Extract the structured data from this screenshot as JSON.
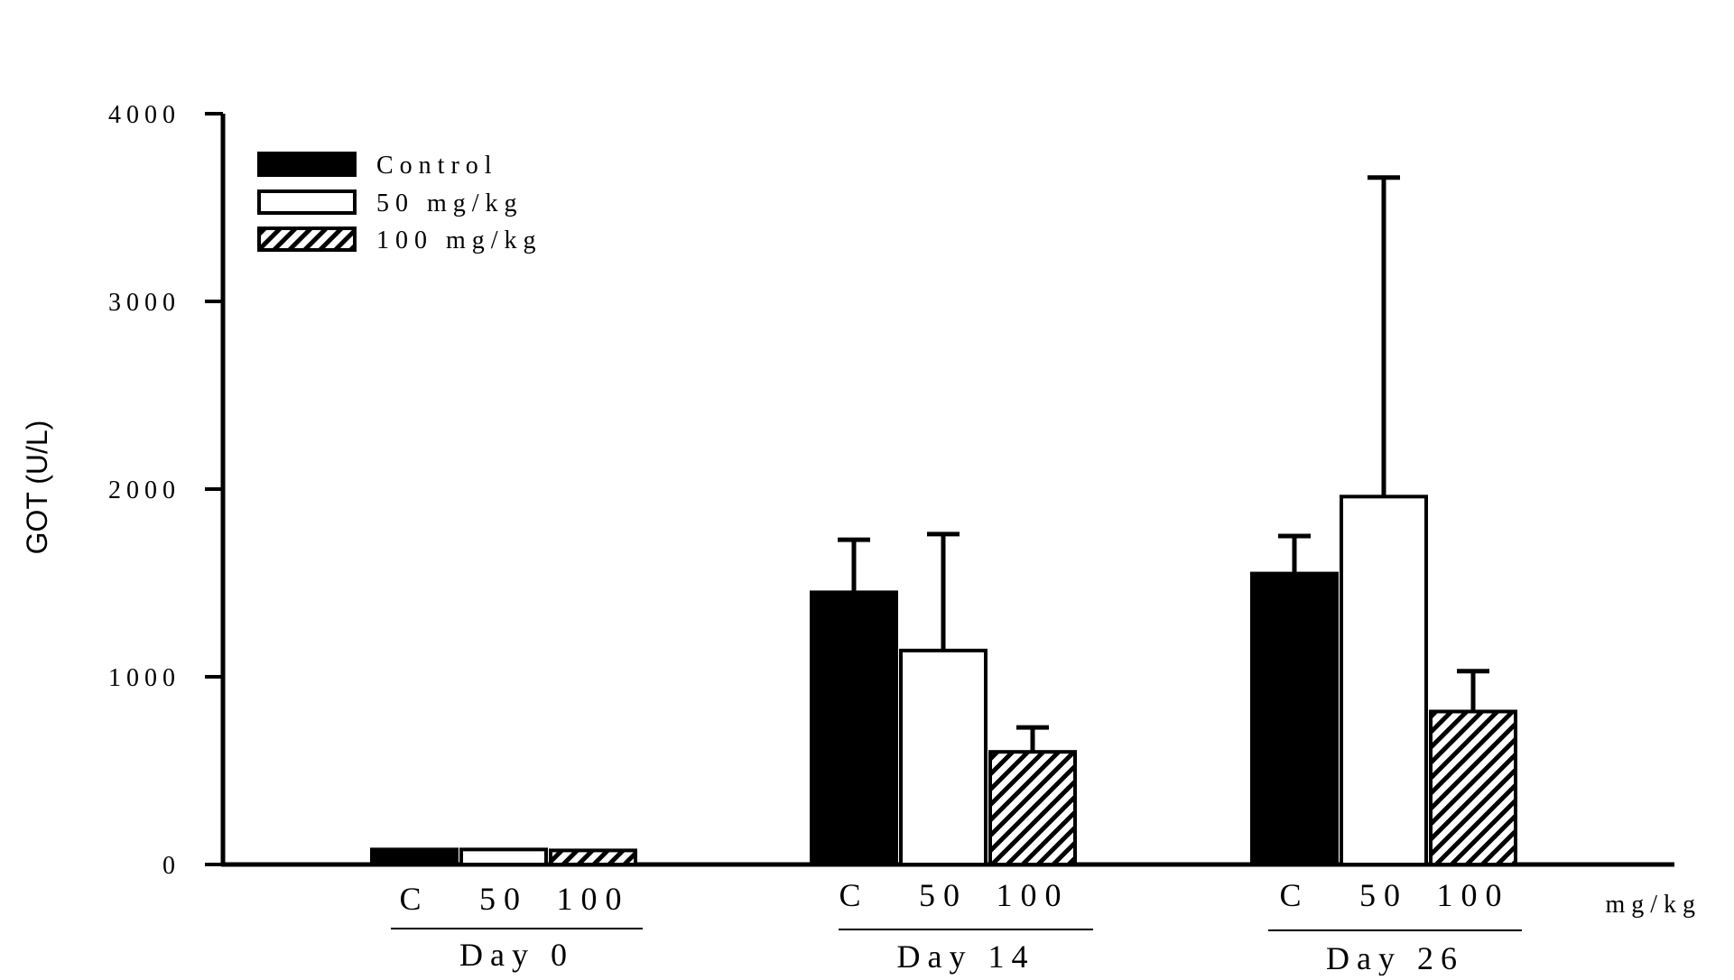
{
  "chart_data": {
    "type": "bar",
    "title": "",
    "ylabel": "GOT (U/L)",
    "ylim": [
      0,
      4000
    ],
    "yticks": [
      "0",
      "1000",
      "2000",
      "3000",
      "4000"
    ],
    "groups": [
      "Day 0",
      "Day 14",
      "Day 26"
    ],
    "categories": [
      "C",
      "50",
      "100"
    ],
    "x_unit": "mg/kg",
    "legend_position": "top-left",
    "series": [
      {
        "name": "Control",
        "fill": "solid",
        "color": "#000000",
        "values": [
          80,
          1450,
          1550
        ],
        "errors": [
          10,
          280,
          200
        ]
      },
      {
        "name": "50 mg/kg",
        "fill": "white",
        "color": "#ffffff",
        "values": [
          80,
          1140,
          1960
        ],
        "errors": [
          10,
          620,
          1700
        ]
      },
      {
        "name": "100 mg/kg",
        "fill": "hatched",
        "color": "#000000",
        "values": [
          75,
          600,
          815
        ],
        "errors": [
          5,
          130,
          215
        ]
      }
    ]
  }
}
